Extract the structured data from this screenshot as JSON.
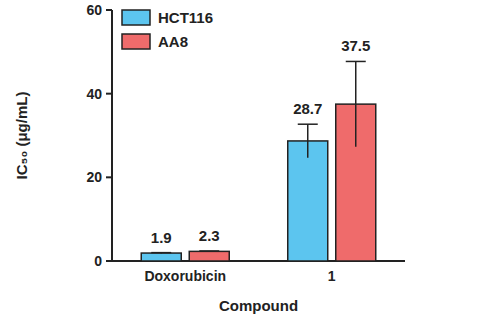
{
  "chart_data": {
    "type": "bar",
    "x_label": "Compound",
    "y_label": "IC₅₀ (μg/mL)",
    "categories": [
      "Doxorubicin",
      "1"
    ],
    "series": [
      {
        "name": "HCT116",
        "color": "#5cc5ef",
        "values": [
          1.9,
          28.7
        ],
        "errors": [
          0.1,
          4.0
        ]
      },
      {
        "name": "AA8",
        "color": "#ef6b6b",
        "values": [
          2.3,
          37.5
        ],
        "errors": [
          0.1,
          10.2
        ]
      }
    ],
    "ylim": [
      0,
      60
    ],
    "yticks": [
      0,
      20,
      40,
      60
    ],
    "legend": "upper-left",
    "data_labels": true,
    "grid": false
  }
}
